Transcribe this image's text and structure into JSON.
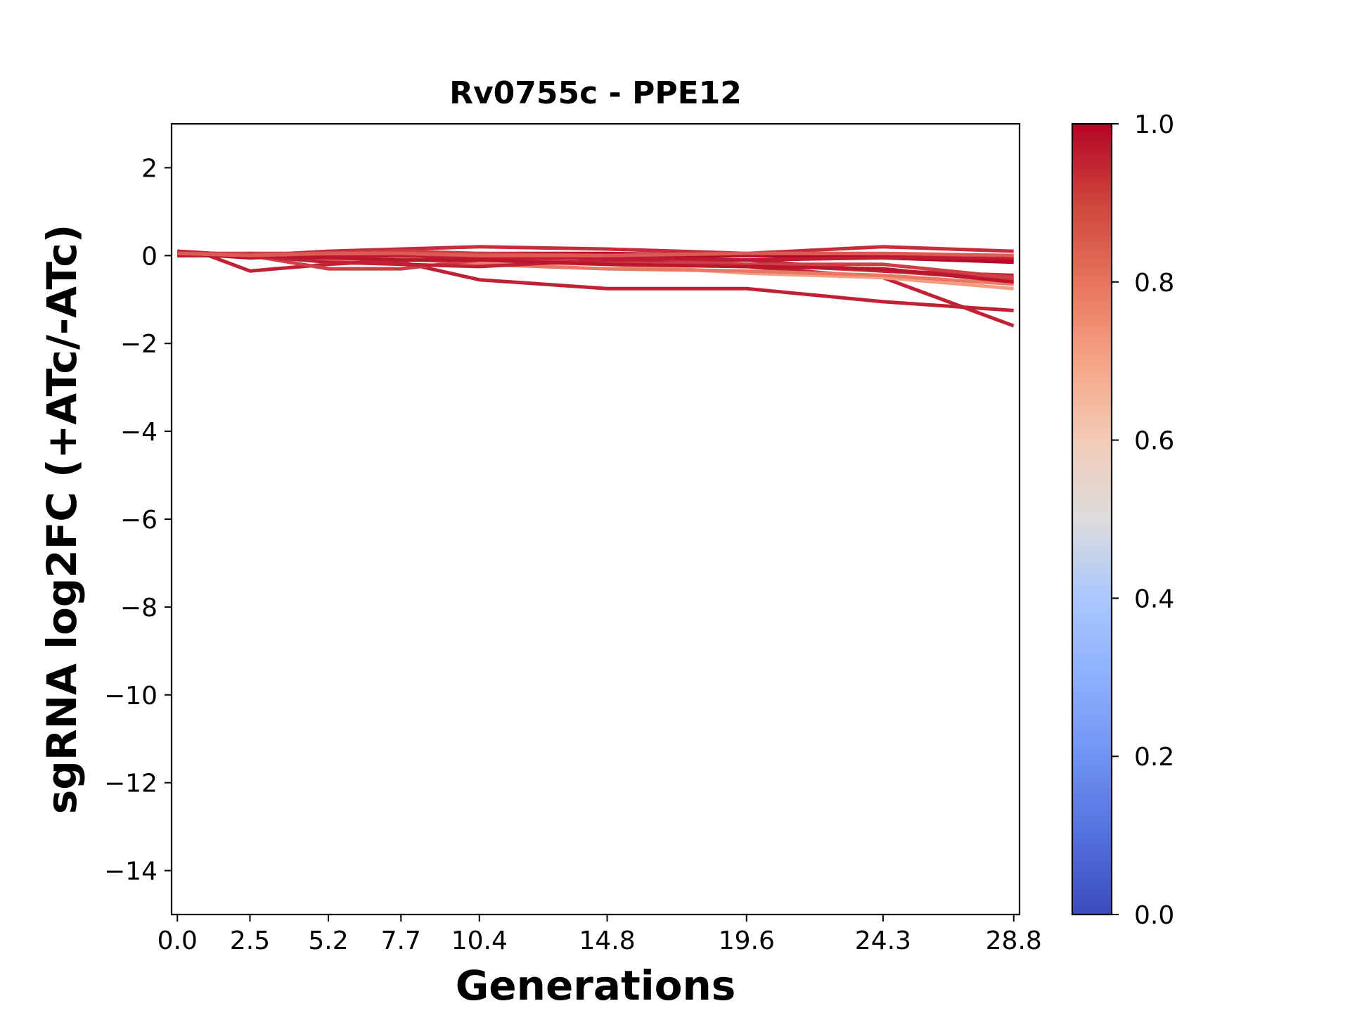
{
  "chart_data": {
    "type": "line",
    "title": "Rv0755c - PPE12",
    "xlabel": "Generations",
    "ylabel": "sgRNA log2FC (+ATc/-ATc)",
    "xlim": [
      -0.2,
      29.0
    ],
    "ylim": [
      -15,
      3
    ],
    "x_ticks": [
      0.0,
      2.5,
      5.2,
      7.7,
      10.4,
      14.8,
      19.6,
      24.3,
      28.8
    ],
    "x_tick_labels": [
      "0.0",
      "2.5",
      "5.2",
      "7.7",
      "10.4",
      "14.8",
      "19.6",
      "24.3",
      "28.8"
    ],
    "y_ticks": [
      2,
      0,
      -2,
      -4,
      -6,
      -8,
      -10,
      -12,
      -14
    ],
    "y_tick_labels": [
      "2",
      "0",
      "−2",
      "−4",
      "−6",
      "−8",
      "−10",
      "−12",
      "−14"
    ],
    "grid": false,
    "colorbar": {
      "colormap": "coolwarm",
      "range": [
        0.0,
        1.0
      ],
      "ticks": [
        0.0,
        0.2,
        0.4,
        0.6,
        0.8,
        1.0
      ],
      "tick_labels": [
        "0.0",
        "0.2",
        "0.4",
        "0.6",
        "0.8",
        "1.0"
      ]
    },
    "series": [
      {
        "x": [
          0.0,
          1.0,
          2.5,
          5.2,
          7.7,
          10.4,
          14.8,
          19.6,
          24.3,
          28.8
        ],
        "values": [
          0.1,
          0.02,
          -0.35,
          -0.2,
          -0.1,
          -0.05,
          -0.2,
          -0.25,
          -0.5,
          -1.6
        ],
        "color_value": 0.95
      },
      {
        "x": [
          0.0,
          2.5,
          5.2,
          7.7,
          10.4,
          14.8,
          19.6,
          24.3,
          28.8
        ],
        "values": [
          0.1,
          0.0,
          -0.05,
          -0.15,
          -0.55,
          -0.75,
          -0.75,
          -1.05,
          -1.25
        ],
        "color_value": 0.95
      },
      {
        "x": [
          0.0,
          2.5,
          5.2,
          7.7,
          10.4,
          14.8,
          19.6,
          24.3,
          28.8
        ],
        "values": [
          0.05,
          0.0,
          0.1,
          0.15,
          0.2,
          0.15,
          0.05,
          0.2,
          0.1
        ],
        "color_value": 0.93
      },
      {
        "x": [
          0.0,
          2.5,
          5.2,
          7.7,
          10.4,
          14.8,
          19.6,
          24.3,
          28.8
        ],
        "values": [
          0.05,
          0.0,
          -0.05,
          -0.1,
          -0.15,
          -0.2,
          -0.4,
          -0.5,
          -0.75
        ],
        "color_value": 0.72
      },
      {
        "x": [
          0.0,
          2.5,
          5.2,
          7.7,
          10.4,
          14.8,
          19.6,
          24.3,
          28.8
        ],
        "values": [
          0.0,
          0.05,
          -0.1,
          -0.05,
          -0.2,
          -0.3,
          -0.35,
          -0.45,
          -0.65
        ],
        "color_value": 0.8
      },
      {
        "x": [
          0.0,
          2.5,
          5.2,
          7.7,
          10.4,
          14.8,
          19.6,
          24.3,
          28.8
        ],
        "values": [
          0.05,
          0.0,
          -0.3,
          -0.3,
          -0.1,
          -0.15,
          -0.2,
          -0.35,
          -0.55
        ],
        "color_value": 0.9
      },
      {
        "x": [
          0.0,
          2.5,
          5.2,
          7.7,
          10.4,
          14.8,
          19.6,
          24.3,
          28.8
        ],
        "values": [
          0.05,
          -0.05,
          0.0,
          0.0,
          0.05,
          0.05,
          0.0,
          0.0,
          -0.1
        ],
        "color_value": 0.98
      },
      {
        "x": [
          0.0,
          2.5,
          5.2,
          7.7,
          10.4,
          14.8,
          19.6,
          24.3,
          28.8
        ],
        "values": [
          0.0,
          0.05,
          0.0,
          0.05,
          0.0,
          -0.05,
          0.0,
          -0.05,
          -0.15
        ],
        "color_value": 0.99
      },
      {
        "x": [
          0.0,
          2.5,
          5.2,
          7.7,
          10.4,
          14.8,
          19.6,
          24.3,
          28.8
        ],
        "values": [
          0.1,
          0.0,
          -0.15,
          -0.2,
          -0.25,
          -0.1,
          -0.1,
          -0.35,
          -0.45
        ],
        "color_value": 0.95
      },
      {
        "x": [
          0.0,
          2.5,
          5.2,
          7.7,
          10.4,
          14.8,
          19.6,
          24.3,
          28.8
        ],
        "values": [
          0.05,
          0.05,
          0.05,
          0.1,
          0.05,
          0.0,
          -0.2,
          -0.2,
          -0.5
        ],
        "color_value": 0.9
      },
      {
        "x": [
          0.0,
          2.5,
          5.2,
          7.7,
          10.4,
          14.8,
          19.6,
          24.3,
          28.8
        ],
        "values": [
          0.0,
          0.0,
          0.0,
          0.0,
          -0.05,
          -0.05,
          -0.1,
          -0.05,
          -0.05
        ],
        "color_value": 0.96
      },
      {
        "x": [
          0.0,
          2.5,
          5.2,
          7.7,
          10.4,
          14.8,
          19.6,
          24.3,
          28.8
        ],
        "values": [
          0.0,
          0.0,
          -0.05,
          -0.1,
          -0.1,
          -0.2,
          -0.25,
          -0.3,
          -0.6
        ],
        "color_value": 0.97
      },
      {
        "x": [
          0.0,
          2.5,
          5.2,
          7.7,
          10.4,
          14.8,
          19.6,
          24.3,
          28.8
        ],
        "values": [
          0.05,
          0.0,
          0.05,
          0.05,
          0.0,
          0.0,
          0.05,
          0.05,
          0.0
        ],
        "color_value": 0.85
      }
    ]
  }
}
